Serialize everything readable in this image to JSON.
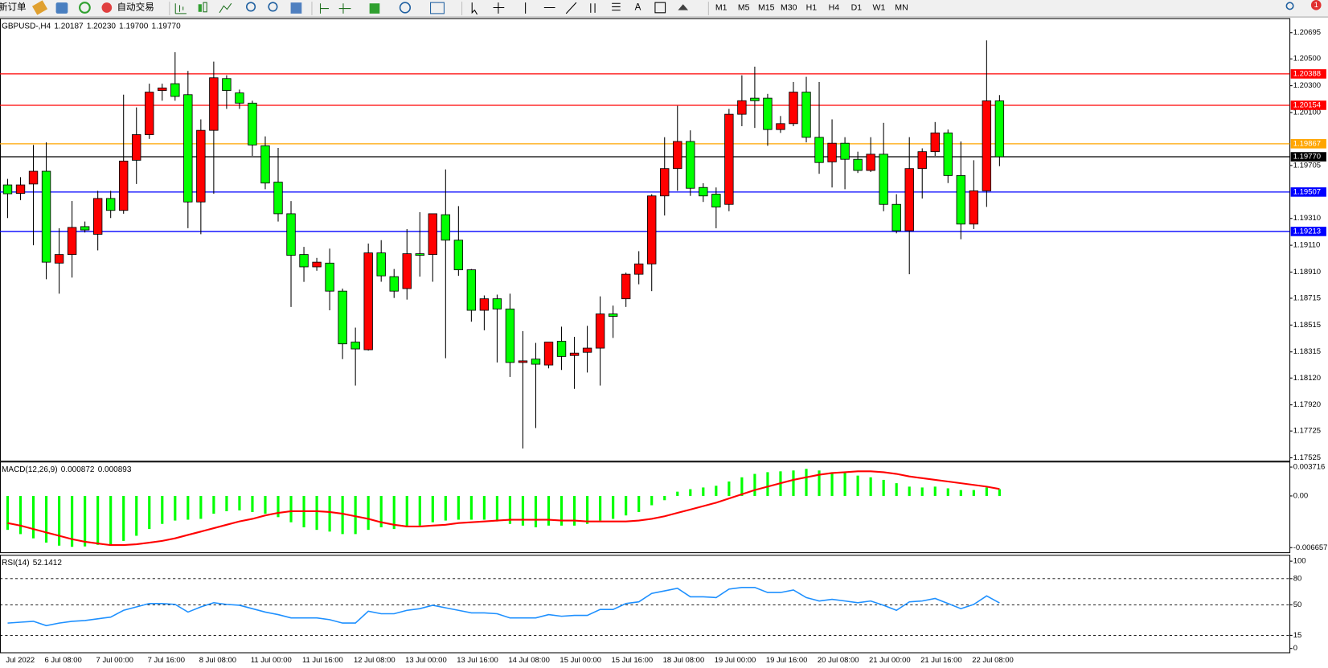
{
  "toolbar": {
    "buttons": [
      "新订单",
      "自动交易"
    ],
    "timeframes": [
      "M1",
      "M5",
      "M15",
      "M30",
      "H1",
      "H4",
      "D1",
      "W1",
      "MN"
    ],
    "notifications": "1"
  },
  "chart_data": [
    {
      "type": "candlestick",
      "title": "GBPUSD-,H4",
      "info_labels": [
        "1.20187",
        "1.20230",
        "1.19700",
        "1.19770"
      ],
      "colors": {
        "up": "#ff0000",
        "down": "#00ff00",
        "wick": "#000000"
      },
      "categories": [
        "Jul 2022",
        null,
        null,
        "6 Jul 08:00",
        null,
        null,
        null,
        "7 Jul 00:00",
        null,
        null,
        null,
        "7 Jul 16:00",
        null,
        null,
        null,
        "8 Jul 08:00",
        null,
        null,
        null,
        "11 Jul 00:00",
        null,
        null,
        null,
        "11 Jul 16:00",
        null,
        null,
        null,
        "12 Jul 08:00",
        null,
        null,
        null,
        "13 Jul 00:00",
        null,
        null,
        null,
        "13 Jul 16:00",
        null,
        null,
        null,
        "14 Jul 08:00",
        null,
        null,
        null,
        "15 Jul 00:00",
        null,
        null,
        null,
        "15 Jul 16:00",
        null,
        null,
        null,
        "18 Jul 08:00",
        null,
        null,
        null,
        "19 Jul 00:00",
        null,
        null,
        null,
        "19 Jul 16:00",
        null,
        null,
        null,
        "20 Jul 08:00",
        null,
        null,
        null,
        "21 Jul 00:00",
        null,
        null,
        null,
        "21 Jul 16:00",
        null,
        null,
        null,
        "22 Jul 08:00",
        null,
        null
      ],
      "open": [
        1.1956,
        1.19497,
        1.19567,
        1.19662,
        1.18977,
        1.19041,
        1.19249,
        1.19192,
        1.19459,
        1.1937,
        1.19744,
        1.19935,
        1.20264,
        1.20315,
        1.20233,
        1.19433,
        1.19967,
        1.20353,
        1.20246,
        1.2017,
        1.19852,
        1.19581,
        1.19345,
        1.19041,
        1.18949,
        1.18977,
        1.18768,
        1.18388,
        1.18331,
        1.19053,
        1.18876,
        1.18787,
        1.19047,
        1.19041,
        1.19338,
        1.19148,
        1.18927,
        1.18625,
        1.18711,
        1.18635,
        1.18236,
        1.18261,
        1.18217,
        1.18394,
        1.18288,
        1.18312,
        1.18343,
        1.18598,
        1.18711,
        1.18894,
        1.18971,
        1.19478,
        1.19682,
        1.19884,
        1.19541,
        1.19491,
        1.19415,
        1.20087,
        1.20207,
        1.20207,
        1.19973,
        1.20017,
        1.20252,
        1.19915,
        1.19732,
        1.19871,
        1.19751,
        1.19668,
        1.19789,
        1.19415,
        1.19218,
        1.19682,
        1.19808,
        1.19948,
        1.1963,
        1.19268,
        1.19516,
        1.20187
      ],
      "high": [
        1.19605,
        1.19618,
        1.19858,
        1.19877,
        1.19237,
        1.1944,
        1.19287,
        1.19516,
        1.19516,
        1.20233,
        1.20138,
        1.20315,
        1.20315,
        1.2055,
        1.2041,
        1.20049,
        1.2048,
        1.20378,
        1.20271,
        1.20188,
        1.19922,
        1.19836,
        1.1944,
        1.19098,
        1.19016,
        1.19085,
        1.18787,
        1.18496,
        1.19123,
        1.19148,
        1.18933,
        1.19231,
        1.19357,
        1.19345,
        1.19676,
        1.19402,
        1.18933,
        1.18736,
        1.18742,
        1.18749,
        1.1847,
        1.18382,
        1.18388,
        1.18503,
        1.18427,
        1.18509,
        1.18729,
        1.1866,
        1.18906,
        1.19066,
        1.19491,
        1.19916,
        1.2015,
        1.19967,
        1.19573,
        1.19541,
        1.20127,
        1.20378,
        1.20442,
        1.20239,
        1.20074,
        1.20328,
        1.20366,
        1.20328,
        1.20049,
        1.19916,
        1.19808,
        1.19916,
        1.20023,
        1.19491,
        1.19916,
        1.19833,
        1.20029,
        1.19973,
        1.19884,
        1.19744,
        1.20638,
        1.2023
      ],
      "low": [
        1.19313,
        1.19446,
        1.1911,
        1.18857,
        1.18749,
        1.18869,
        1.19205,
        1.19072,
        1.19313,
        1.19345,
        1.19567,
        1.19903,
        1.20188,
        1.20188,
        1.19237,
        1.19192,
        1.19494,
        1.20127,
        1.20127,
        1.19776,
        1.19528,
        1.19287,
        1.1865,
        1.18837,
        1.1892,
        1.18625,
        1.18261,
        1.18064,
        1.18325,
        1.18838,
        1.18717,
        1.18705,
        1.18876,
        1.18838,
        1.18268,
        1.18882,
        1.1854,
        1.18476,
        1.18236,
        1.18128,
        1.17595,
        1.17747,
        1.18192,
        1.1818,
        1.18039,
        1.18161,
        1.18064,
        1.18419,
        1.1865,
        1.18819,
        1.18768,
        1.19332,
        1.19516,
        1.19478,
        1.19433,
        1.19237,
        1.19364,
        1.19998,
        1.19985,
        1.19852,
        1.19948,
        1.19998,
        1.19877,
        1.19643,
        1.19541,
        1.19528,
        1.19649,
        1.19656,
        1.19364,
        1.19199,
        1.18894,
        1.19459,
        1.19776,
        1.19574,
        1.19155,
        1.19231,
        1.19396,
        1.197
      ],
      "close": [
        1.19494,
        1.1956,
        1.19662,
        1.18984,
        1.19041,
        1.19243,
        1.19224,
        1.19459,
        1.1937,
        1.19738,
        1.19935,
        1.20252,
        1.20283,
        1.2022,
        1.19433,
        1.19967,
        1.20359,
        1.20264,
        1.2017,
        1.19858,
        1.19574,
        1.19345,
        1.19035,
        1.18949,
        1.18984,
        1.18768,
        1.18375,
        1.18337,
        1.19053,
        1.18882,
        1.18768,
        1.19047,
        1.19035,
        1.19345,
        1.19148,
        1.18927,
        1.18625,
        1.18711,
        1.18635,
        1.18236,
        1.18248,
        1.18223,
        1.18388,
        1.18281,
        1.18306,
        1.18343,
        1.18598,
        1.1858,
        1.18894,
        1.18971,
        1.19478,
        1.19682,
        1.19884,
        1.19535,
        1.19478,
        1.19395,
        1.20087,
        1.20188,
        1.20188,
        1.19973,
        1.20017,
        1.20252,
        1.19915,
        1.19727,
        1.19871,
        1.19751,
        1.19668,
        1.19789,
        1.19415,
        1.19218,
        1.19682,
        1.19808,
        1.19948,
        1.1963,
        1.19268,
        1.19516,
        1.20187,
        1.1977
      ],
      "levels": [
        {
          "value": 1.20388,
          "label": "1.20388",
          "color": "#ff0000"
        },
        {
          "value": 1.20154,
          "label": "1.20154",
          "color": "#ff0000"
        },
        {
          "value": 1.19867,
          "label": "1.19867",
          "color": "#ffa500"
        },
        {
          "value": 1.1977,
          "label": "1.19770",
          "color": "#000000"
        },
        {
          "value": 1.19507,
          "label": "1.19507",
          "color": "#0000ff"
        },
        {
          "value": 1.19213,
          "label": "1.19213",
          "color": "#0000ff"
        }
      ],
      "ylim": [
        1.175,
        1.208
      ],
      "yticks": [
        1.20695,
        {
          "value": 1.205,
          "label": "1.20500"
        },
        {
          "value": 1.203,
          "label": "1.20300"
        },
        {
          "value": 1.201,
          "label": "1.20100"
        },
        1.19705,
        {
          "value": 1.1931,
          "label": "1.19310"
        },
        {
          "value": 1.1911,
          "label": "1.19110"
        },
        {
          "value": 1.1891,
          "label": "1.18910"
        },
        1.18715,
        1.18515,
        1.18315,
        {
          "value": 1.1812,
          "label": "1.18120"
        },
        {
          "value": 1.1792,
          "label": "1.17920"
        },
        1.17725,
        1.17525
      ]
    },
    {
      "type": "combo",
      "title": "MACD(12,26,9)",
      "series": [
        {
          "style": "bar",
          "color": "#00ff00",
          "values": [
            -0.004368,
            -0.004914,
            -0.00546,
            -0.006006,
            -0.0064,
            -0.00655,
            -0.0065,
            -0.0063,
            -0.00622,
            -0.00579,
            -0.00513,
            -0.00426,
            -0.0036,
            -0.00317,
            -0.00306,
            -0.00295,
            -0.00229,
            -0.00197,
            -0.00186,
            -0.00207,
            -0.00229,
            -0.00273,
            -0.00339,
            -0.00404,
            -0.00437,
            -0.00459,
            -0.00491,
            -0.00491,
            -0.00437,
            -0.00404,
            -0.00426,
            -0.00404,
            -0.00382,
            -0.00339,
            -0.00317,
            -0.00306,
            -0.00306,
            -0.00306,
            -0.00328,
            -0.0036,
            -0.00382,
            -0.00404,
            -0.00382,
            -0.00382,
            -0.00382,
            -0.0036,
            -0.00317,
            -0.00295,
            -0.00251,
            -0.00207,
            -0.0012,
            -0.00055,
            0.00055,
            0.00087,
            0.00109,
            0.00131,
            0.00186,
            0.0024,
            0.00284,
            0.00306,
            0.00317,
            0.00328,
            0.00349,
            0.00328,
            0.00306,
            0.00295,
            0.00262,
            0.0024,
            0.00207,
            0.00164,
            0.0012,
            0.00109,
            0.0012,
            0.00098,
            0.00076,
            0.00076,
            0.00109,
            0.000872
          ]
        },
        {
          "style": "line",
          "color": "#ff0000",
          "values": [
            -0.00349,
            -0.00382,
            -0.00426,
            -0.0047,
            -0.00513,
            -0.00557,
            -0.0059,
            -0.00612,
            -0.00633,
            -0.00633,
            -0.00622,
            -0.00601,
            -0.00579,
            -0.00546,
            -0.00502,
            -0.00459,
            -0.00415,
            -0.00371,
            -0.00328,
            -0.00295,
            -0.00251,
            -0.00218,
            -0.00197,
            -0.00197,
            -0.00197,
            -0.00207,
            -0.00229,
            -0.00262,
            -0.00295,
            -0.00339,
            -0.00371,
            -0.00393,
            -0.00393,
            -0.00382,
            -0.00371,
            -0.00349,
            -0.00339,
            -0.00328,
            -0.00317,
            -0.00306,
            -0.00306,
            -0.00306,
            -0.00306,
            -0.00317,
            -0.00317,
            -0.00328,
            -0.00328,
            -0.00328,
            -0.00328,
            -0.00317,
            -0.00295,
            -0.00262,
            -0.00218,
            -0.00175,
            -0.00131,
            -0.00087,
            -0.00033,
            0.00022,
            0.00076,
            0.0012,
            0.00164,
            0.00207,
            0.0024,
            0.00273,
            0.00295,
            0.00306,
            0.00317,
            0.00317,
            0.00306,
            0.00284,
            0.00251,
            0.00229,
            0.00207,
            0.00186,
            0.00164,
            0.00142,
            0.0012,
            0.000893
          ]
        }
      ],
      "ylim": [
        -0.00731,
        0.00437
      ],
      "yticks": [
        0.003716,
        {
          "value": 0,
          "label": "0.00"
        },
        -0.006657
      ]
    },
    {
      "type": "combo",
      "title": "RSI(14)",
      "series": [
        {
          "style": "line",
          "color": "#1e90ff",
          "values": [
            29.1,
            30.1,
            31.1,
            26.2,
            29.1,
            31.1,
            32.0,
            34.0,
            35.9,
            43.7,
            47.6,
            51.5,
            51.5,
            50.5,
            41.7,
            47.6,
            52.4,
            50.5,
            49.5,
            45.6,
            41.7,
            38.8,
            35.0,
            35.0,
            35.0,
            33.0,
            29.1,
            29.1,
            42.7,
            39.8,
            39.8,
            43.7,
            45.6,
            49.5,
            46.6,
            43.7,
            40.8,
            40.8,
            39.8,
            35.0,
            35.0,
            35.0,
            38.8,
            36.9,
            37.9,
            37.9,
            44.7,
            44.7,
            51.5,
            53.4,
            63.1,
            66.0,
            68.9,
            59.2,
            59.2,
            58.3,
            68.0,
            69.9,
            69.9,
            64.1,
            64.1,
            67.0,
            58.3,
            54.4,
            56.3,
            54.4,
            52.4,
            54.4,
            49.5,
            43.7,
            53.4,
            54.4,
            57.3,
            51.5,
            45.6,
            50.5,
            60.2,
            52.1412
          ]
        }
      ],
      "levels": [
        80,
        50,
        15
      ],
      "ylim": [
        -4.9,
        106.8
      ],
      "yticks": [
        100,
        80,
        50,
        15,
        0
      ]
    }
  ]
}
